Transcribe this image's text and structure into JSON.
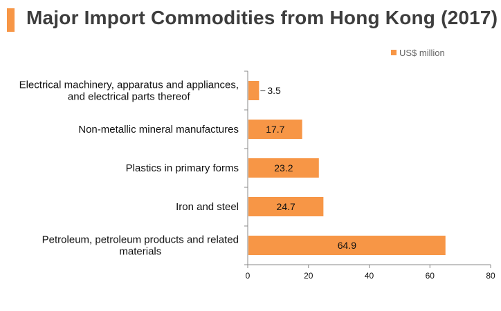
{
  "colors": {
    "accent": "#F79646",
    "axis": "#888888"
  },
  "chart_data": {
    "type": "bar",
    "orientation": "horizontal",
    "title": "Major Import Commodities from Hong Kong (2017)",
    "xlabel": "",
    "ylabel": "",
    "xlim": [
      0,
      80
    ],
    "xticks": [
      "0",
      "20",
      "40",
      "60",
      "80"
    ],
    "grid": false,
    "legend_position": "top-right",
    "categories": [
      [
        "Electrical machinery, apparatus and appliances,",
        "and electrical parts thereof"
      ],
      [
        "Non-metallic mineral manufactures"
      ],
      [
        "Plastics in primary forms"
      ],
      [
        "Iron and steel"
      ],
      [
        "Petroleum, petroleum products and related",
        "materials"
      ]
    ],
    "series": [
      {
        "name": "US$ million",
        "values": [
          3.5,
          17.7,
          23.2,
          24.7,
          64.9
        ],
        "labels": [
          "3.5",
          "17.7",
          "23.2",
          "24.7",
          "64.9"
        ]
      }
    ]
  }
}
